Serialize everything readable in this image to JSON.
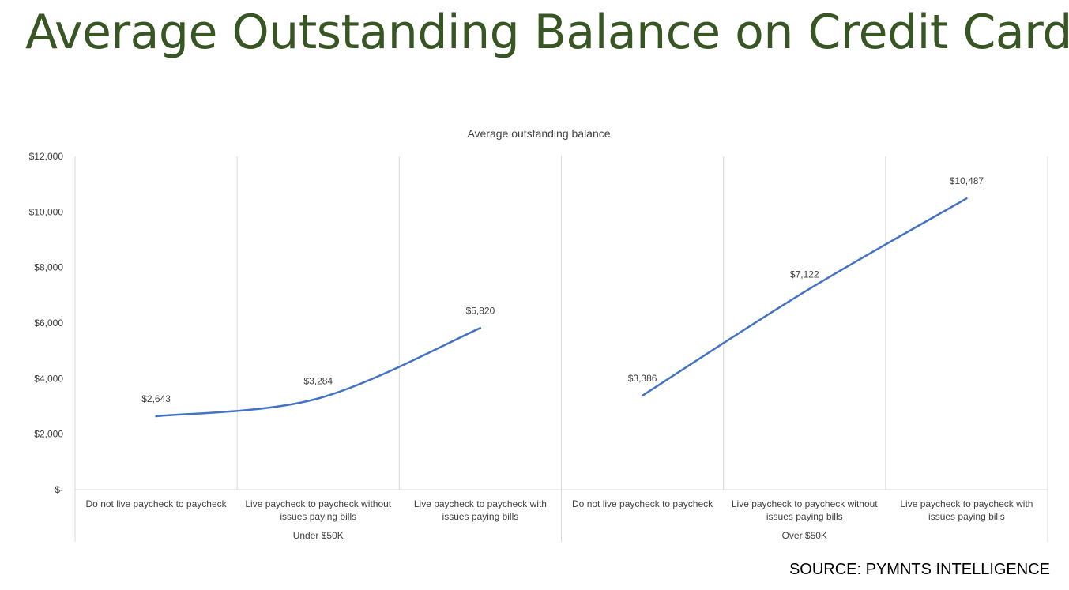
{
  "slide": {
    "title": "Average Outstanding Balance on Credit Cards",
    "source": "SOURCE: PYMNTS INTELLIGENCE"
  },
  "colors": {
    "title": "#375623",
    "line": "#4472C4",
    "grid": "#D9D9D9",
    "text": "#404040"
  },
  "chart_data": {
    "type": "line",
    "title": "Average outstanding balance",
    "ylim": [
      0,
      12000
    ],
    "y_ticks": [
      {
        "value": 0,
        "label": "$-"
      },
      {
        "value": 2000,
        "label": "$2,000"
      },
      {
        "value": 4000,
        "label": "$4,000"
      },
      {
        "value": 6000,
        "label": "$6,000"
      },
      {
        "value": 8000,
        "label": "$8,000"
      },
      {
        "value": 10000,
        "label": "$10,000"
      },
      {
        "value": 12000,
        "label": "$12,000"
      }
    ],
    "grid": "vertical",
    "legend": "none",
    "smoothed": true,
    "groups": [
      {
        "name": "Under $50K",
        "categories": [
          [
            "Do not live paycheck to paycheck"
          ],
          [
            "Live paycheck to paycheck without",
            "issues paying bills"
          ],
          [
            "Live paycheck to paycheck with",
            "issues paying bills"
          ]
        ],
        "values": [
          2643,
          3284,
          5820
        ],
        "labels": [
          "$2,643",
          "$3,284",
          "$5,820"
        ]
      },
      {
        "name": "Over $50K",
        "categories": [
          [
            "Do not live paycheck to paycheck"
          ],
          [
            "Live paycheck to paycheck without",
            "issues paying bills"
          ],
          [
            "Live paycheck to paycheck with",
            "issues paying bills"
          ]
        ],
        "values": [
          3386,
          7122,
          10487
        ],
        "labels": [
          "$3,386",
          "$7,122",
          "$10,487"
        ]
      }
    ]
  }
}
